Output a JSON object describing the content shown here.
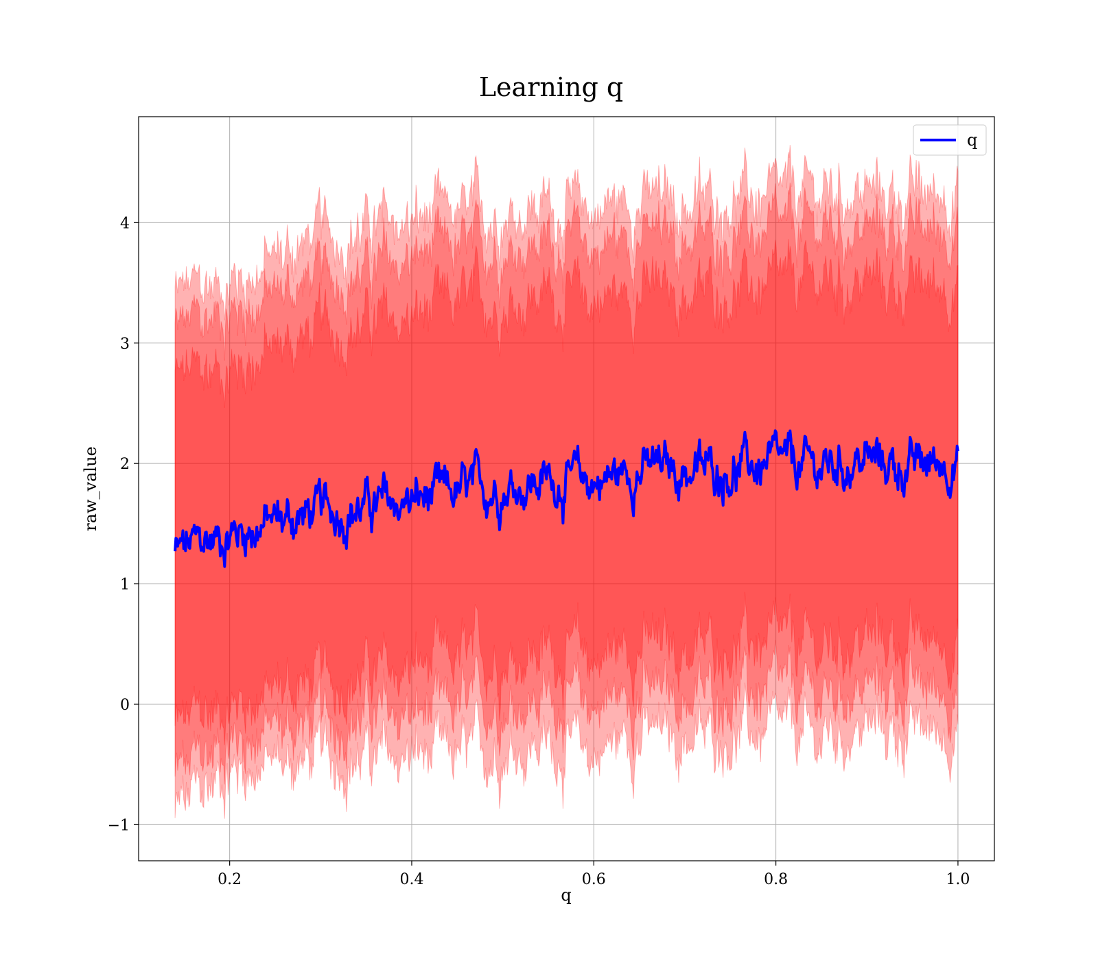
{
  "chart_data": {
    "type": "line",
    "title": "Learning q",
    "xlabel": "q",
    "ylabel": "raw_value",
    "xlim": [
      0.1,
      1.04
    ],
    "ylim": [
      -1.3,
      4.88
    ],
    "x_ticks": [
      0.2,
      0.4,
      0.6,
      0.8,
      1.0
    ],
    "x_tick_labels": [
      "0.2",
      "0.4",
      "0.6",
      "0.8",
      "1.0"
    ],
    "y_ticks": [
      -1,
      0,
      1,
      2,
      3,
      4
    ],
    "y_tick_labels": [
      "−1",
      "0",
      "1",
      "2",
      "3",
      "4"
    ],
    "grid": true,
    "legend": {
      "position": "top-right",
      "entries": [
        "q"
      ]
    },
    "colors": {
      "line": "#0000ff",
      "band": "#ff0000",
      "band_overlap": "#800080",
      "grid": "#b0b0b0"
    },
    "x": [
      0.14,
      0.2,
      0.25,
      0.3,
      0.35,
      0.4,
      0.45,
      0.5,
      0.55,
      0.6,
      0.65,
      0.7,
      0.75,
      0.8,
      0.85,
      0.9,
      0.95,
      1.0
    ],
    "series": [
      {
        "name": "q",
        "values": [
          1.26,
          1.42,
          1.52,
          1.6,
          1.64,
          1.68,
          1.75,
          1.82,
          1.86,
          1.85,
          1.96,
          1.94,
          1.96,
          1.98,
          1.97,
          2.03,
          1.96,
          2.05
        ]
      }
    ],
    "bands": [
      {
        "lower": [
          -0.9,
          -0.55,
          -0.5,
          -0.45,
          -0.45,
          -0.45,
          -0.45,
          -0.35,
          -0.35,
          -0.4,
          -0.25,
          -0.3,
          -0.25,
          -0.25,
          -0.3,
          -0.2,
          -0.25,
          -0.2
        ],
        "upper": [
          3.4,
          3.5,
          3.7,
          3.9,
          3.95,
          4.0,
          4.05,
          4.1,
          4.15,
          4.1,
          4.2,
          4.15,
          4.2,
          4.2,
          4.25,
          4.25,
          4.2,
          4.3
        ]
      },
      {
        "lower": [
          -0.6,
          -0.3,
          -0.2,
          -0.15,
          -0.1,
          -0.1,
          -0.05,
          0.0,
          0.05,
          0.0,
          0.1,
          0.05,
          0.1,
          0.1,
          0.05,
          0.15,
          0.1,
          0.15
        ],
        "upper": [
          3.1,
          3.25,
          3.4,
          3.55,
          3.6,
          3.7,
          3.75,
          3.8,
          3.85,
          3.8,
          3.9,
          3.85,
          3.9,
          3.9,
          3.95,
          3.95,
          3.9,
          4.0
        ]
      },
      {
        "lower": [
          -0.2,
          0.0,
          0.1,
          0.2,
          0.25,
          0.3,
          0.35,
          0.4,
          0.45,
          0.4,
          0.5,
          0.45,
          0.5,
          0.5,
          0.45,
          0.55,
          0.5,
          0.55
        ],
        "upper": [
          2.7,
          2.8,
          2.95,
          3.1,
          3.15,
          3.2,
          3.3,
          3.35,
          3.4,
          3.35,
          3.45,
          3.4,
          3.45,
          3.45,
          3.5,
          3.5,
          3.45,
          3.55
        ]
      }
    ]
  }
}
